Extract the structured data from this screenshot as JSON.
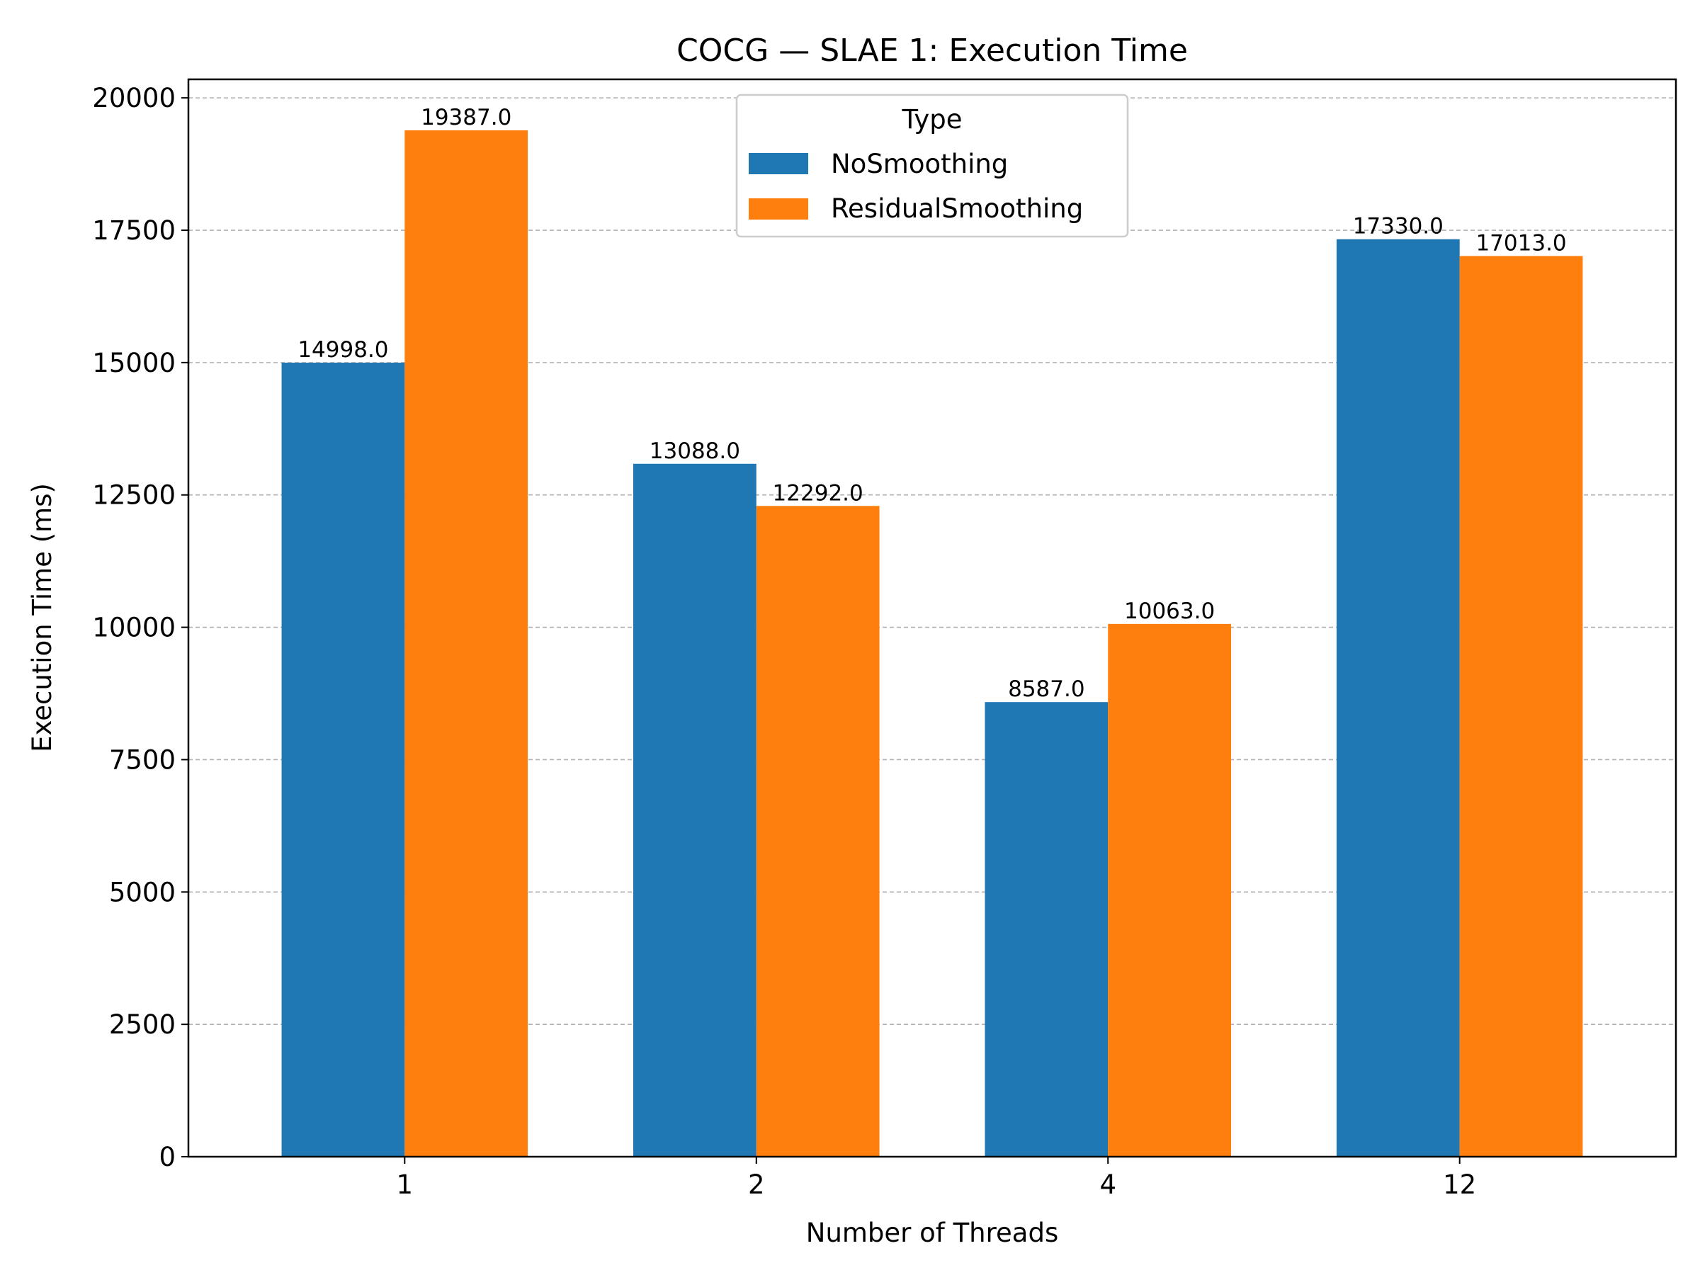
{
  "chart_data": {
    "type": "bar",
    "title": "COCG — SLAE 1: Execution Time",
    "xlabel": "Number of Threads",
    "ylabel": "Execution Time (ms)",
    "categories": [
      "1",
      "2",
      "4",
      "12"
    ],
    "series": [
      {
        "name": "NoSmoothing",
        "color": "#1f77b4",
        "values": [
          14998.0,
          13088.0,
          8587.0,
          17330.0
        ]
      },
      {
        "name": "ResidualSmoothing",
        "color": "#ff7f0e",
        "values": [
          19387.0,
          12292.0,
          10063.0,
          17013.0
        ]
      }
    ],
    "data_labels": [
      [
        "14998.0",
        "13088.0",
        "8587.0",
        "17330.0"
      ],
      [
        "19387.0",
        "12292.0",
        "10063.0",
        "17013.0"
      ]
    ],
    "ylim": [
      0,
      20350
    ],
    "yticks": [
      0,
      2500,
      5000,
      7500,
      10000,
      12500,
      15000,
      17500,
      20000
    ],
    "ytick_labels": [
      "0",
      "2500",
      "5000",
      "7500",
      "10000",
      "12500",
      "15000",
      "17500",
      "20000"
    ],
    "grid": "y, dashed",
    "legend": {
      "title": "Type",
      "placement": "top-center"
    }
  }
}
